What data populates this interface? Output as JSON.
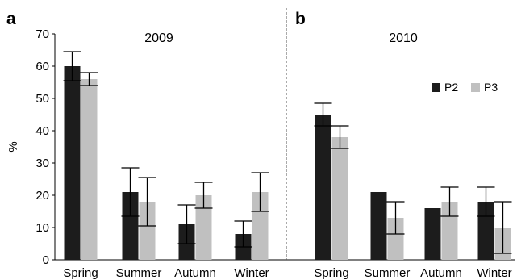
{
  "chart_data": {
    "type": "bar",
    "ylabel": "%",
    "ylim": [
      0,
      70
    ],
    "yticks": [
      0,
      10,
      20,
      30,
      40,
      50,
      60,
      70
    ],
    "categories": [
      "Spring",
      "Summer",
      "Autumn",
      "Winter"
    ],
    "legend": {
      "placement": "top-right of panel b",
      "entries": [
        "P2",
        "P3"
      ]
    },
    "colors": {
      "P2": "#1c1c1c",
      "P3": "#c0c0c0"
    },
    "panels": [
      {
        "letter": "a",
        "title": "2009",
        "series": [
          {
            "name": "P2",
            "values": [
              60,
              21,
              11,
              8
            ],
            "errors": [
              4.5,
              7.5,
              6,
              4
            ]
          },
          {
            "name": "P3",
            "values": [
              56,
              18,
              20,
              21
            ],
            "errors": [
              2,
              7.5,
              4,
              6
            ]
          }
        ]
      },
      {
        "letter": "b",
        "title": "2010",
        "series": [
          {
            "name": "P2",
            "values": [
              45,
              21,
              16,
              18
            ],
            "errors": [
              3.5,
              0,
              0,
              4.5
            ]
          },
          {
            "name": "P3",
            "values": [
              38,
              13,
              18,
              10
            ],
            "errors": [
              3.5,
              5,
              4.5,
              8
            ]
          }
        ]
      }
    ]
  }
}
